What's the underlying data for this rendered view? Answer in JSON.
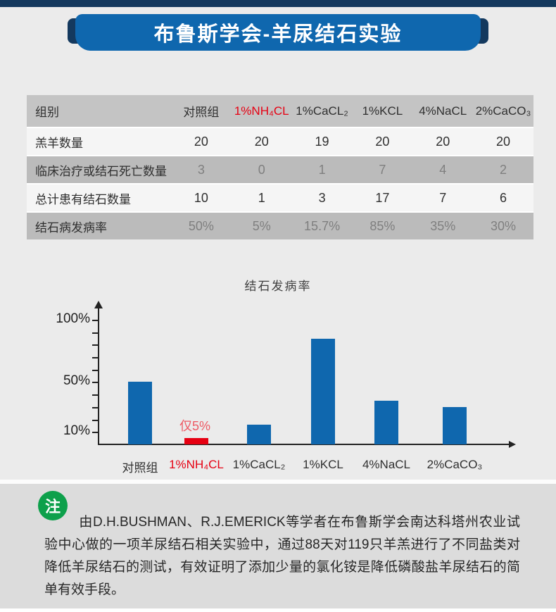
{
  "colors": {
    "banner_blue": "#0f67ae",
    "navy": "#14395e",
    "bar_blue": "#0f67ae",
    "highlight_red": "#e60012",
    "annotation_red": "#ee5a64",
    "note_green": "#0da04b"
  },
  "header": {
    "title": "布鲁斯学会-羊尿结石实验"
  },
  "table": {
    "header": {
      "col0": "组别",
      "cols": [
        "对照组",
        "1%NH₄CL",
        "1%CaCL₂",
        "1%KCL",
        "4%NaCL",
        "2%CaCO₃"
      ],
      "highlight_index": 1
    },
    "rows": [
      {
        "label": "羔羊数量",
        "values": [
          "20",
          "20",
          "19",
          "20",
          "20",
          "20"
        ],
        "shade": "light",
        "highlight_index": null
      },
      {
        "label": "临床治疗或结石死亡数量",
        "values": [
          "3",
          "0",
          "1",
          "7",
          "4",
          "2"
        ],
        "shade": "dark",
        "highlight_index": 1
      },
      {
        "label": "总计患有结石数量",
        "values": [
          "10",
          "1",
          "3",
          "17",
          "7",
          "6"
        ],
        "shade": "light",
        "highlight_index": null
      },
      {
        "label": "结石病发病率",
        "values": [
          "50%",
          "5%",
          "15.7%",
          "85%",
          "35%",
          "30%"
        ],
        "shade": "dark",
        "highlight_index": 1
      }
    ]
  },
  "chart_data": {
    "type": "bar",
    "title": "结石发病率",
    "categories": [
      "对照组",
      "1%NH₄CL",
      "1%CaCL₂",
      "1%KCL",
      "4%NaCL",
      "2%CaCO₃"
    ],
    "values": [
      50,
      5,
      15.7,
      85,
      35,
      30
    ],
    "unit": "%",
    "ylim": [
      0,
      100
    ],
    "ytick_values": [
      10,
      50,
      100
    ],
    "ytick_labels": [
      "10%",
      "50%",
      "100%"
    ],
    "grid": false,
    "legend": false,
    "bar_color": "#0f67ae",
    "highlight_index": 1,
    "highlight_bar_color": "#e60012",
    "annotation": {
      "text": "仅5%",
      "target_index": 1,
      "color": "#ee5a64"
    }
  },
  "note": {
    "badge": "注",
    "text": "由D.H.BUSHMAN、R.J.EMERICK等学者在布鲁斯学会南达科塔州农业试验中心做的一项羊尿结石相关实验中，通过88天对119只羊羔进行了不同盐类对降低羊尿结石的测试，有效证明了添加少量的氯化铵是降低磷酸盐羊尿结石的简单有效手段。"
  }
}
